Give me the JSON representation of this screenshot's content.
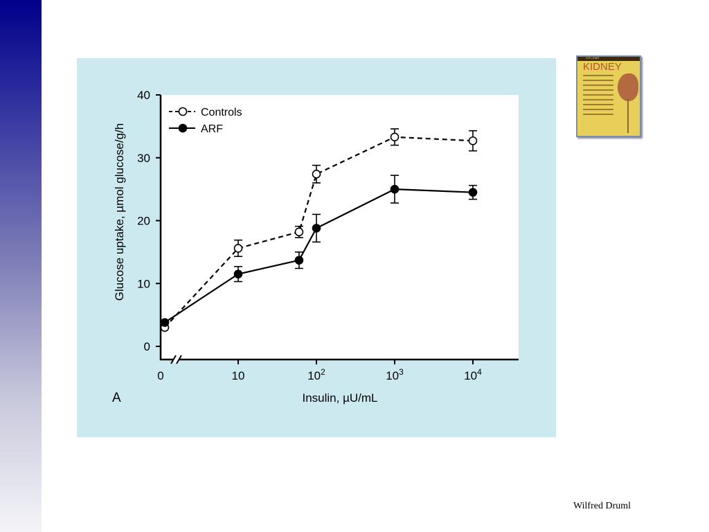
{
  "slide": {
    "author": "Wilfred Druml",
    "book_title": "KIDNEY"
  },
  "colors": {
    "sidebar_top": "#00008b",
    "panel_background": "#cce9f0",
    "plot_background": "#ffffff",
    "line_color": "#000000"
  },
  "chart_data": {
    "type": "line",
    "panel_label": "A",
    "xlabel": "Insulin, µU/mL",
    "ylabel": "Glucose uptake, µmol glucose/g/h",
    "ylim": [
      0,
      40
    ],
    "yticks": [
      0,
      10,
      20,
      30,
      40
    ],
    "x_scale": "log with axis break after 0",
    "xticks": [
      {
        "value": 0,
        "base": "0",
        "exp": ""
      },
      {
        "value": 10,
        "base": "10",
        "exp": ""
      },
      {
        "value": 100,
        "base": "10",
        "exp": "2"
      },
      {
        "value": 1000,
        "base": "10",
        "exp": "3"
      },
      {
        "value": 10000,
        "base": "10",
        "exp": "4"
      }
    ],
    "legend_position": "top-left",
    "grid": false,
    "series": [
      {
        "name": "Controls",
        "marker": "open-circle",
        "line_style": "dashed",
        "points": [
          {
            "x": 0.6,
            "y": 3.0,
            "err": 0
          },
          {
            "x": 10,
            "y": 15.6,
            "err": 1.3
          },
          {
            "x": 60,
            "y": 18.2,
            "err": 0.9
          },
          {
            "x": 100,
            "y": 27.4,
            "err": 1.4
          },
          {
            "x": 1000,
            "y": 33.3,
            "err": 1.3
          },
          {
            "x": 10000,
            "y": 32.7,
            "err": 1.6
          }
        ]
      },
      {
        "name": "ARF",
        "marker": "filled-circle",
        "line_style": "solid",
        "points": [
          {
            "x": 0.6,
            "y": 3.8,
            "err": 0
          },
          {
            "x": 10,
            "y": 11.5,
            "err": 1.2
          },
          {
            "x": 60,
            "y": 13.7,
            "err": 1.3
          },
          {
            "x": 100,
            "y": 18.8,
            "err": 2.2
          },
          {
            "x": 1000,
            "y": 25.0,
            "err": 2.2
          },
          {
            "x": 10000,
            "y": 24.5,
            "err": 1.1
          }
        ]
      }
    ]
  }
}
